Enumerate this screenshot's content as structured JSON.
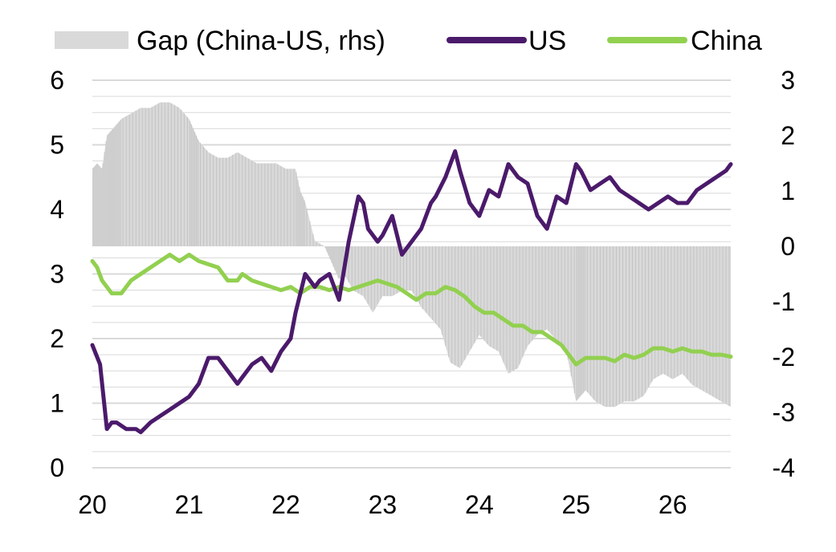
{
  "chart_data": {
    "type": "line",
    "title": "",
    "legend": {
      "placement": "top",
      "items": [
        {
          "label": "Gap (China-US, rhs)",
          "kind": "area"
        },
        {
          "label": "US",
          "kind": "line"
        },
        {
          "label": "China",
          "kind": "line"
        }
      ]
    },
    "x_axis": {
      "tick_labels": [
        "20",
        "21",
        "22",
        "23",
        "24",
        "25",
        "26"
      ],
      "tick_values": [
        2020,
        2021,
        2022,
        2023,
        2024,
        2025,
        2026
      ],
      "range": [
        2020,
        2026.6
      ]
    },
    "y_axis_left": {
      "tick_labels": [
        "0",
        "1",
        "2",
        "3",
        "4",
        "5",
        "6"
      ],
      "range": [
        0,
        6
      ]
    },
    "y_axis_right": {
      "tick_labels": [
        "-4",
        "-3",
        "-2",
        "-1",
        "0",
        "1",
        "2",
        "3"
      ],
      "range": [
        -4,
        3
      ]
    },
    "grid": true,
    "colors": {
      "US": "#4b1a6b",
      "China": "#92d050",
      "Gap": "#d9d9d9",
      "grid": "#d9d9d9"
    },
    "series": [
      {
        "name": "US",
        "axis": "left",
        "x": [
          2020.0,
          2020.08,
          2020.15,
          2020.2,
          2020.25,
          2020.35,
          2020.45,
          2020.5,
          2020.6,
          2020.7,
          2020.8,
          2020.9,
          2021.0,
          2021.1,
          2021.2,
          2021.3,
          2021.4,
          2021.5,
          2021.55,
          2021.65,
          2021.75,
          2021.85,
          2021.95,
          2022.05,
          2022.1,
          2022.2,
          2022.3,
          2022.35,
          2022.45,
          2022.55,
          2022.65,
          2022.75,
          2022.8,
          2022.85,
          2022.95,
          2023.0,
          2023.1,
          2023.15,
          2023.2,
          2023.3,
          2023.4,
          2023.5,
          2023.55,
          2023.65,
          2023.75,
          2023.8,
          2023.9,
          2024.0,
          2024.1,
          2024.2,
          2024.3,
          2024.4,
          2024.5,
          2024.6,
          2024.7,
          2024.8,
          2024.9,
          2025.0,
          2025.05,
          2025.15,
          2025.25,
          2025.35,
          2025.45,
          2025.55,
          2025.65,
          2025.75,
          2025.85,
          2025.95,
          2026.05,
          2026.15,
          2026.25,
          2026.35,
          2026.45,
          2026.55,
          2026.6
        ],
        "values": [
          1.9,
          1.6,
          0.6,
          0.7,
          0.7,
          0.6,
          0.6,
          0.55,
          0.7,
          0.8,
          0.9,
          1.0,
          1.1,
          1.3,
          1.7,
          1.7,
          1.5,
          1.3,
          1.4,
          1.6,
          1.7,
          1.5,
          1.8,
          2.0,
          2.4,
          3.0,
          2.8,
          2.9,
          3.0,
          2.6,
          3.5,
          4.2,
          4.1,
          3.7,
          3.5,
          3.6,
          3.9,
          3.6,
          3.3,
          3.5,
          3.7,
          4.1,
          4.2,
          4.5,
          4.9,
          4.6,
          4.1,
          3.9,
          4.3,
          4.2,
          4.7,
          4.5,
          4.4,
          3.9,
          3.7,
          4.2,
          4.1,
          4.7,
          4.6,
          4.3,
          4.4,
          4.5,
          4.3,
          4.2,
          4.1,
          4.0,
          4.1,
          4.2,
          4.1,
          4.1,
          4.3,
          4.4,
          4.5,
          4.6,
          4.7
        ]
      },
      {
        "name": "China",
        "axis": "left",
        "x": [
          2020.0,
          2020.05,
          2020.1,
          2020.15,
          2020.2,
          2020.3,
          2020.4,
          2020.5,
          2020.6,
          2020.7,
          2020.8,
          2020.9,
          2021.0,
          2021.1,
          2021.2,
          2021.3,
          2021.4,
          2021.5,
          2021.55,
          2021.65,
          2021.75,
          2021.85,
          2021.95,
          2022.05,
          2022.15,
          2022.25,
          2022.35,
          2022.45,
          2022.55,
          2022.65,
          2022.75,
          2022.85,
          2022.95,
          2023.05,
          2023.15,
          2023.25,
          2023.35,
          2023.45,
          2023.55,
          2023.65,
          2023.75,
          2023.85,
          2023.95,
          2024.05,
          2024.15,
          2024.25,
          2024.35,
          2024.45,
          2024.55,
          2024.65,
          2024.75,
          2024.85,
          2024.95,
          2025.0,
          2025.1,
          2025.2,
          2025.3,
          2025.4,
          2025.5,
          2025.6,
          2025.7,
          2025.8,
          2025.9,
          2026.0,
          2026.1,
          2026.2,
          2026.3,
          2026.4,
          2026.5,
          2026.6
        ],
        "values": [
          3.2,
          3.1,
          2.9,
          2.8,
          2.7,
          2.7,
          2.9,
          3.0,
          3.1,
          3.2,
          3.3,
          3.2,
          3.3,
          3.2,
          3.15,
          3.1,
          2.9,
          2.9,
          3.0,
          2.9,
          2.85,
          2.8,
          2.75,
          2.8,
          2.7,
          2.8,
          2.8,
          2.75,
          2.8,
          2.75,
          2.8,
          2.85,
          2.9,
          2.85,
          2.8,
          2.7,
          2.6,
          2.7,
          2.7,
          2.8,
          2.75,
          2.65,
          2.5,
          2.4,
          2.4,
          2.3,
          2.2,
          2.2,
          2.1,
          2.1,
          2.0,
          1.9,
          1.7,
          1.6,
          1.7,
          1.7,
          1.7,
          1.65,
          1.75,
          1.7,
          1.75,
          1.85,
          1.85,
          1.8,
          1.85,
          1.8,
          1.8,
          1.75,
          1.75,
          1.72
        ]
      },
      {
        "name": "Gap (China-US, rhs)",
        "axis": "right",
        "type": "area",
        "x": [
          2020.0,
          2020.05,
          2020.1,
          2020.15,
          2020.2,
          2020.25,
          2020.3,
          2020.4,
          2020.5,
          2020.6,
          2020.7,
          2020.8,
          2020.9,
          2021.0,
          2021.05,
          2021.1,
          2021.2,
          2021.3,
          2021.4,
          2021.5,
          2021.6,
          2021.7,
          2021.8,
          2021.9,
          2022.0,
          2022.1,
          2022.15,
          2022.2,
          2022.3,
          2022.4,
          2022.45,
          2022.5,
          2022.55,
          2022.6,
          2022.7,
          2022.8,
          2022.9,
          2023.0,
          2023.1,
          2023.2,
          2023.3,
          2023.4,
          2023.5,
          2023.6,
          2023.7,
          2023.8,
          2023.9,
          2024.0,
          2024.1,
          2024.2,
          2024.3,
          2024.4,
          2024.5,
          2024.6,
          2024.7,
          2024.8,
          2024.9,
          2025.0,
          2025.05,
          2025.1,
          2025.2,
          2025.3,
          2025.4,
          2025.5,
          2025.6,
          2025.7,
          2025.8,
          2025.9,
          2026.0,
          2026.1,
          2026.2,
          2026.3,
          2026.4,
          2026.5,
          2026.6
        ],
        "values": [
          1.4,
          1.5,
          1.4,
          2.0,
          2.1,
          2.2,
          2.3,
          2.4,
          2.5,
          2.5,
          2.6,
          2.6,
          2.5,
          2.3,
          2.1,
          1.9,
          1.7,
          1.6,
          1.6,
          1.7,
          1.6,
          1.5,
          1.5,
          1.5,
          1.4,
          1.4,
          1.0,
          0.8,
          0.1,
          0.0,
          -0.2,
          -0.4,
          -0.6,
          -0.5,
          -0.8,
          -0.9,
          -1.2,
          -0.9,
          -0.9,
          -0.8,
          -0.8,
          -1.1,
          -1.3,
          -1.5,
          -2.1,
          -2.2,
          -1.9,
          -1.6,
          -1.8,
          -1.9,
          -2.3,
          -2.2,
          -1.8,
          -1.6,
          -1.5,
          -1.7,
          -1.9,
          -2.8,
          -2.7,
          -2.6,
          -2.8,
          -2.9,
          -2.9,
          -2.8,
          -2.8,
          -2.7,
          -2.4,
          -2.3,
          -2.4,
          -2.3,
          -2.5,
          -2.6,
          -2.7,
          -2.8,
          -2.9
        ]
      }
    ]
  }
}
